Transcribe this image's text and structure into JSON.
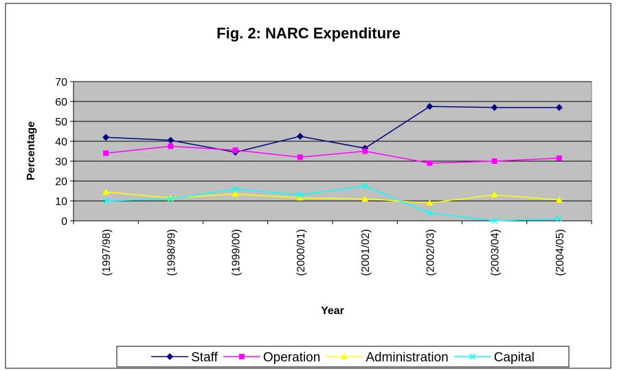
{
  "chart_data": {
    "type": "line",
    "title": "Fig. 2: NARC Expenditure",
    "x_label": "Year",
    "y_label": "Percentage",
    "categories": [
      "(1997/98)",
      "(1998/99)",
      "(1999/00)",
      "(2000/01)",
      "(2001/02)",
      "(2002/03)",
      "(2003/04)",
      "(2004/05)"
    ],
    "series": [
      {
        "name": "Staff",
        "color": "#000080",
        "marker": "diamond",
        "values": [
          42,
          40.5,
          34.5,
          42.5,
          36.5,
          57.5,
          57,
          57
        ]
      },
      {
        "name": "Operation",
        "color": "#FF00FF",
        "marker": "square",
        "values": [
          34,
          37.5,
          35.5,
          32,
          35,
          29,
          30,
          31.5
        ]
      },
      {
        "name": "Administration",
        "color": "#FFFF00",
        "marker": "triangle",
        "values": [
          14.5,
          11.5,
          13.5,
          11.5,
          11,
          9,
          13,
          10.5
        ]
      },
      {
        "name": "Capital",
        "color": "#00FFFF",
        "marker": "x",
        "values": [
          10,
          11,
          16,
          13,
          17.5,
          4,
          0,
          1
        ]
      }
    ],
    "ylim": [
      0,
      70
    ],
    "yticks": [
      0,
      10,
      20,
      30,
      40,
      50,
      60,
      70
    ],
    "grid": true,
    "legend": "bottom"
  }
}
